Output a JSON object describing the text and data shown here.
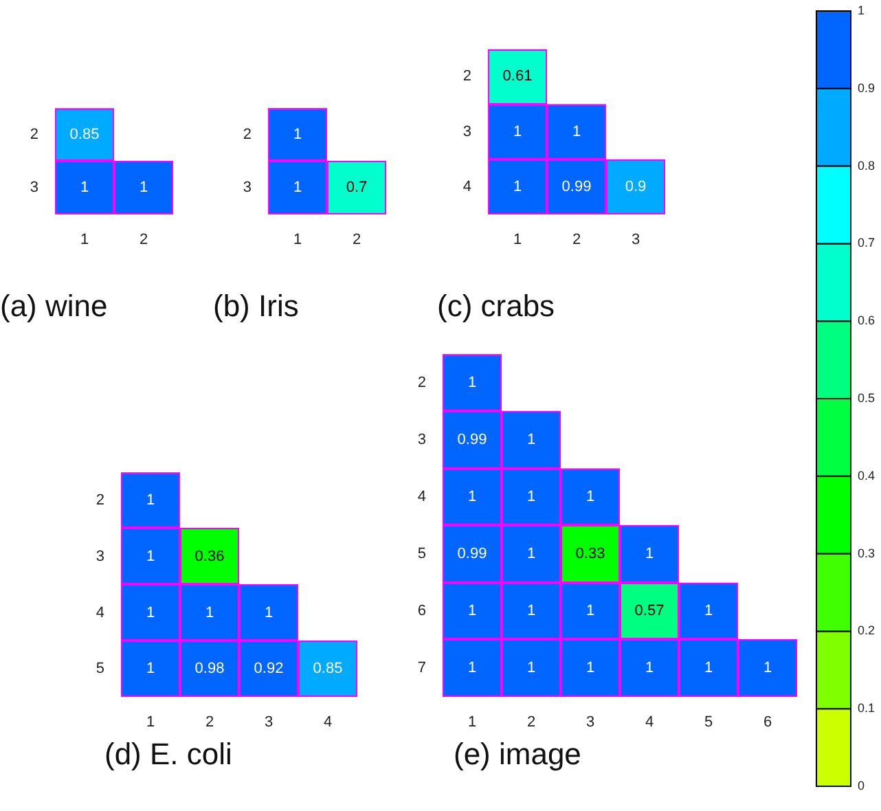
{
  "chart_data": [
    {
      "type": "heatmap",
      "title": "(a) wine",
      "categories": [
        "1",
        "2"
      ],
      "y_categories": [
        "2",
        "3"
      ],
      "cells": [
        [
          0.85,
          null
        ],
        [
          1,
          1
        ]
      ],
      "data_labels": true
    },
    {
      "type": "heatmap",
      "title": "(b) Iris",
      "categories": [
        "1",
        "2"
      ],
      "y_categories": [
        "2",
        "3"
      ],
      "cells": [
        [
          1,
          null
        ],
        [
          1,
          0.7
        ]
      ],
      "data_labels": true
    },
    {
      "type": "heatmap",
      "title": "(c) crabs",
      "categories": [
        "1",
        "2",
        "3"
      ],
      "y_categories": [
        "2",
        "3",
        "4"
      ],
      "cells": [
        [
          0.61,
          null,
          null
        ],
        [
          1,
          1,
          null
        ],
        [
          1,
          0.99,
          0.9
        ]
      ],
      "data_labels": true
    },
    {
      "type": "heatmap",
      "title": "(d) E. coli",
      "categories": [
        "1",
        "2",
        "3",
        "4"
      ],
      "y_categories": [
        "2",
        "3",
        "4",
        "5"
      ],
      "cells": [
        [
          1,
          null,
          null,
          null
        ],
        [
          1,
          0.36,
          null,
          null
        ],
        [
          1,
          1,
          1,
          null
        ],
        [
          1,
          0.98,
          0.92,
          0.85
        ]
      ],
      "data_labels": true
    },
    {
      "type": "heatmap",
      "title": "(e) image",
      "categories": [
        "1",
        "2",
        "3",
        "4",
        "5",
        "6"
      ],
      "y_categories": [
        "2",
        "3",
        "4",
        "5",
        "6",
        "7"
      ],
      "cells": [
        [
          1,
          null,
          null,
          null,
          null,
          null
        ],
        [
          0.99,
          1,
          null,
          null,
          null,
          null
        ],
        [
          1,
          1,
          1,
          null,
          null,
          null
        ],
        [
          0.99,
          1,
          0.33,
          1,
          null,
          null
        ],
        [
          1,
          1,
          1,
          0.57,
          1,
          null
        ],
        [
          1,
          1,
          1,
          1,
          1,
          1
        ]
      ],
      "clim": [
        0,
        1
      ],
      "cticks": [
        0,
        0.1,
        0.2,
        0.3,
        0.4,
        0.5,
        0.6,
        0.7,
        0.8,
        0.9,
        1
      ],
      "data_labels": true
    }
  ]
}
